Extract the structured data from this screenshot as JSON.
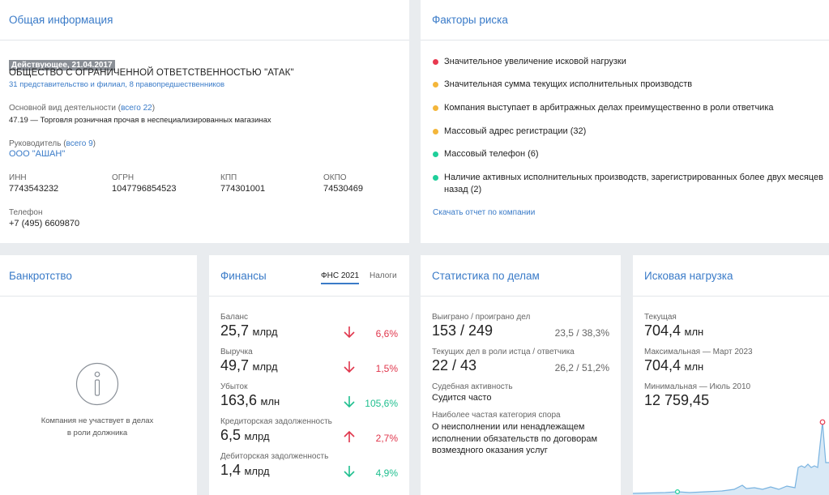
{
  "general": {
    "title": "Общая информация",
    "badge": "Действующее, 21.04.2017",
    "name": "ОБЩЕСТВО С ОГРАНИЧЕННОЙ ОТВЕТСТВЕННОСТЬЮ \"АТАК\"",
    "branches": "31 представительство и филиал, 8 правопредшественников",
    "activity_label": "Основной вид деятельности",
    "activity_all": "всего 22",
    "activity_value": "47.19 — Торговля розничная прочая в неспециализированных магазинах",
    "head_label": "Руководитель",
    "head_all": "всего 9",
    "head_value": "ООО \"АШАН\"",
    "inn_label": "ИНН",
    "inn": "7743543232",
    "ogrn_label": "ОГРН",
    "ogrn": "1047796854523",
    "kpp_label": "КПП",
    "kpp": "774301001",
    "okpo_label": "ОКПО",
    "okpo": "74530469",
    "phone_label": "Телефон",
    "phone": "+7 (495) 6609870"
  },
  "risks": {
    "title": "Факторы риска",
    "items": [
      {
        "text": "Значительное увеличение исковой нагрузки",
        "color": "#e8384f"
      },
      {
        "text": "Значительная сумма текущих исполнительных производств",
        "color": "#f4b63a"
      },
      {
        "text": "Компания выступает в арбитражных делах преимущественно в роли ответчика",
        "color": "#f4b63a"
      },
      {
        "text": "Массовый адрес регистрации (32)",
        "color": "#f4b63a"
      },
      {
        "text": "Массовый телефон (6)",
        "color": "#1fcf9a"
      },
      {
        "text": "Наличие активных исполнительных производств, зарегистрированных более двух месяцев назад (2)",
        "color": "#1fcf9a"
      }
    ],
    "report_link": "Скачать отчет по компании"
  },
  "bankruptcy": {
    "title": "Банкротство",
    "message_line1": "Компания не участвует в делах",
    "message_line2": "в роли должника"
  },
  "finances": {
    "title": "Финансы",
    "tab_fns": "ФНС 2021",
    "tab_taxes": "Налоги",
    "rows": [
      {
        "label": "Баланс",
        "value": "25,7",
        "unit": "млрд",
        "pct": "6,6%",
        "dir": "down",
        "color": "red"
      },
      {
        "label": "Выручка",
        "value": "49,7",
        "unit": "млрд",
        "pct": "1,5%",
        "dir": "down",
        "color": "red"
      },
      {
        "label": "Убыток",
        "value": "163,6",
        "unit": "млн",
        "pct": "105,6%",
        "dir": "down",
        "color": "green"
      },
      {
        "label": "Кредиторская задолженность",
        "value": "6,5",
        "unit": "млрд",
        "pct": "2,7%",
        "dir": "up",
        "color": "red"
      },
      {
        "label": "Дебиторская задолженность",
        "value": "1,4",
        "unit": "млрд",
        "pct": "4,9%",
        "dir": "down",
        "color": "green"
      }
    ]
  },
  "stats": {
    "title": "Статистика по делам",
    "won_label": "Выиграно / проиграно дел",
    "won_value": "153 / 249",
    "won_pct": "23,5 / 38,3%",
    "role_label": "Текущих дел в роли истца / ответчика",
    "role_value": "22 / 43",
    "role_pct": "26,2 / 51,2%",
    "activity_label": "Судебная активность",
    "activity_value": "Судится часто",
    "category_label": "Наиболее частая категория спора",
    "category_value": "О неисполнении или ненадлежащем исполнении обязательств по договорам возмездного оказания услуг"
  },
  "claims": {
    "title": "Исковая нагрузка",
    "current_label": "Текущая",
    "current_value": "704,4",
    "current_unit": "млн",
    "max_label": "Максимальная — Март 2023",
    "max_value": "704,4",
    "max_unit": "млн",
    "min_label": "Минимальная — Июль 2010",
    "min_value": "12 759,45"
  }
}
